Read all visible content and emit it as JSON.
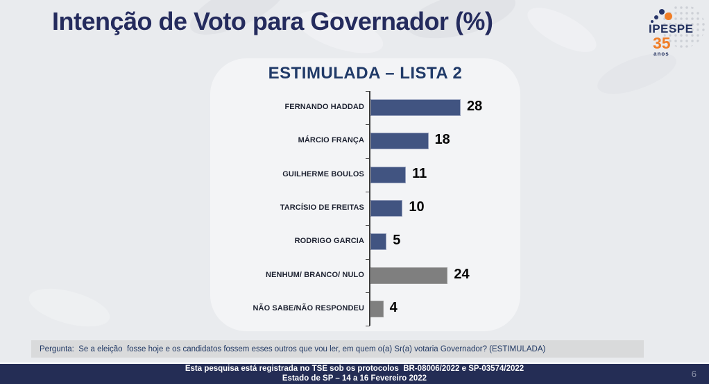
{
  "page": {
    "title": "Intenção de Voto para Governador (%)",
    "page_number": "6"
  },
  "logo": {
    "name": "IPESPE",
    "years": "35",
    "years_label": "anos"
  },
  "chart_data": {
    "type": "bar",
    "orientation": "horizontal",
    "title": "ESTIMULADA – LISTA 2",
    "categories": [
      "FERNANDO HADDAD",
      "MÁRCIO FRANÇA",
      "GUILHERME BOULOS",
      "TARCÍSIO DE FREITAS",
      "RODRIGO GARCIA",
      "NENHUM/ BRANCO/ NULO",
      "NÃO SABE/NÃO RESPONDEU"
    ],
    "values": [
      28,
      18,
      11,
      10,
      5,
      24,
      4
    ],
    "bar_types": [
      "candidate",
      "candidate",
      "candidate",
      "candidate",
      "candidate",
      "neutral",
      "neutral"
    ],
    "colors": {
      "candidate": "#415481",
      "neutral": "#7f7f7f"
    },
    "value_labels_shown": true,
    "xlim": [
      0,
      30
    ],
    "grid": false,
    "legend": false
  },
  "question": {
    "label": "Pergunta:  Se a eleição  fosse hoje e os candidatos fossem esses outros que vou ler, em quem o(a) Sr(a) votaria Governador? (ESTIMULADA)"
  },
  "footer": {
    "line1": "Esta pesquisa está registrada no TSE sob os protocolos  BR-08006/2022 e SP-03574/2022",
    "line2": "Estado de SP – 14 a 16 Fevereiro 2022"
  }
}
